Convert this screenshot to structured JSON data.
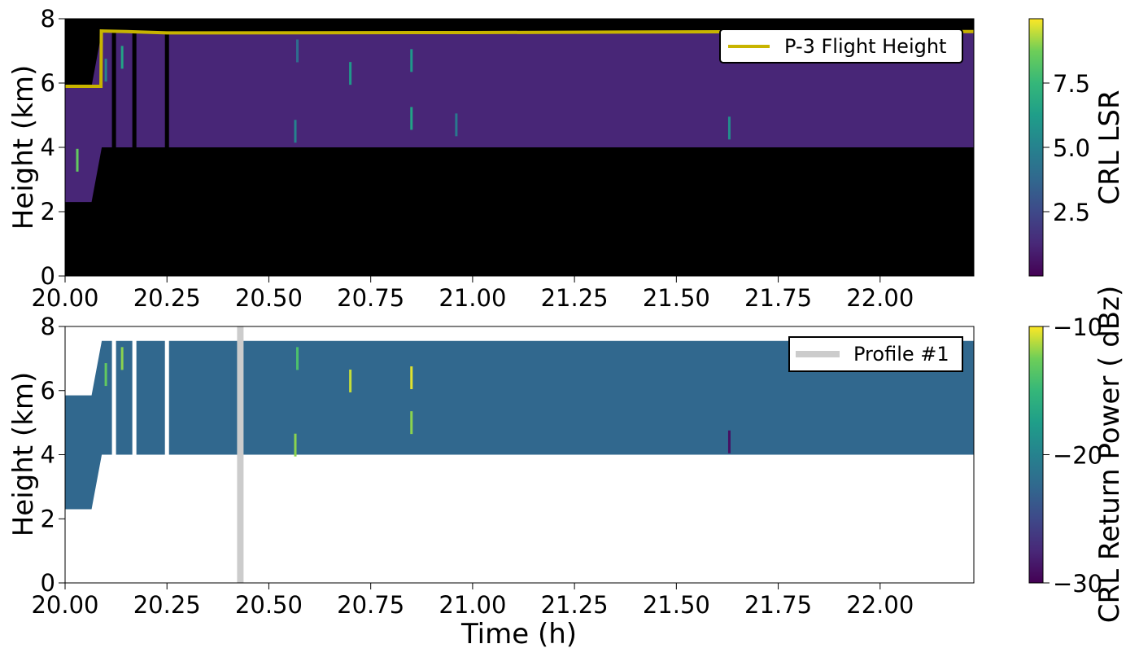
{
  "chart_data": [
    {
      "type": "heatmap",
      "title": "",
      "xlabel": "",
      "ylabel": "Height (km)",
      "xlim": [
        20.0,
        22.23
      ],
      "ylim": [
        0,
        8
      ],
      "x_ticks": [
        "20.00",
        "20.25",
        "20.50",
        "20.75",
        "21.00",
        "21.25",
        "21.50",
        "21.75",
        "22.00"
      ],
      "y_ticks": [
        "0",
        "2",
        "4",
        "6",
        "8"
      ],
      "background_color": "#000000",
      "colormap": "viridis",
      "colorbar": {
        "label": "CRL LSR",
        "ticks": [
          "2.5",
          "5.0",
          "7.5"
        ],
        "tick_values": [
          2.5,
          5.0,
          7.5
        ],
        "range": [
          0.0,
          10.0
        ]
      },
      "field_base_value": 1.2,
      "valid_region": [
        {
          "x": 20.0,
          "bottom": 2.3,
          "top": 5.9
        },
        {
          "x": 20.06,
          "bottom": 2.3,
          "top": 5.9
        },
        {
          "x": 20.065,
          "bottom": 2.3,
          "top": 5.9
        },
        {
          "x": 20.09,
          "bottom": 4.0,
          "top": 7.6
        },
        {
          "x": 22.23,
          "bottom": 4.0,
          "top": 7.6
        }
      ],
      "gaps": [
        [
          20.115,
          20.125
        ],
        [
          20.165,
          20.175
        ],
        [
          20.245,
          20.255
        ]
      ],
      "features": [
        {
          "x": 20.565,
          "y": 4.5,
          "value": 5.0
        },
        {
          "x": 20.57,
          "y": 7.0,
          "value": 4.0
        },
        {
          "x": 20.7,
          "y": 6.3,
          "value": 6.0
        },
        {
          "x": 20.85,
          "y": 4.9,
          "value": 6.5
        },
        {
          "x": 20.85,
          "y": 6.7,
          "value": 6.0
        },
        {
          "x": 20.96,
          "y": 4.7,
          "value": 4.5
        },
        {
          "x": 21.63,
          "y": 4.6,
          "value": 5.5
        },
        {
          "x": 20.03,
          "y": 3.6,
          "value": 8.5
        },
        {
          "x": 20.1,
          "y": 6.4,
          "value": 5.0
        },
        {
          "x": 20.14,
          "y": 6.8,
          "value": 6.5
        }
      ],
      "series": [
        {
          "name": "P-3 Flight Height",
          "color": "#c8b400",
          "x": [
            20.0,
            20.088,
            20.089,
            20.15,
            20.25,
            21.0,
            21.75,
            22.23
          ],
          "y": [
            5.9,
            5.9,
            7.62,
            7.6,
            7.56,
            7.57,
            7.6,
            7.6
          ]
        }
      ],
      "legend": {
        "placement": "top-right",
        "entries": [
          "P-3 Flight Height"
        ]
      }
    },
    {
      "type": "heatmap",
      "title": "",
      "xlabel": "Time (h)",
      "ylabel": "Height (km)",
      "xlim": [
        20.0,
        22.23
      ],
      "ylim": [
        0,
        8
      ],
      "x_ticks": [
        "20.00",
        "20.25",
        "20.50",
        "20.75",
        "21.00",
        "21.25",
        "21.50",
        "21.75",
        "22.00"
      ],
      "y_ticks": [
        "0",
        "2",
        "4",
        "6",
        "8"
      ],
      "background_color": "#ffffff",
      "colormap": "viridis",
      "colorbar": {
        "label": "CRL Return Power ( dBz)",
        "ticks": [
          "−30",
          "−20",
          "−10"
        ],
        "tick_values": [
          -30,
          -20,
          -10
        ],
        "range": [
          -30,
          -10
        ]
      },
      "field_base_value": -22.5,
      "valid_region": [
        {
          "x": 20.0,
          "bottom": 2.3,
          "top": 5.85
        },
        {
          "x": 20.06,
          "bottom": 2.3,
          "top": 5.85
        },
        {
          "x": 20.065,
          "bottom": 2.3,
          "top": 5.85
        },
        {
          "x": 20.09,
          "bottom": 4.0,
          "top": 7.55
        },
        {
          "x": 22.23,
          "bottom": 4.0,
          "top": 7.55
        }
      ],
      "gaps": [
        [
          20.115,
          20.125
        ],
        [
          20.165,
          20.175
        ],
        [
          20.245,
          20.255
        ]
      ],
      "features": [
        {
          "x": 20.565,
          "y": 4.3,
          "value": -12.0
        },
        {
          "x": 20.57,
          "y": 7.0,
          "value": -14.0
        },
        {
          "x": 20.7,
          "y": 6.3,
          "value": -11.0
        },
        {
          "x": 20.85,
          "y": 6.4,
          "value": -10.5
        },
        {
          "x": 20.85,
          "y": 5.0,
          "value": -12.0
        },
        {
          "x": 21.63,
          "y": 4.4,
          "value": -29.0
        },
        {
          "x": 20.1,
          "y": 6.5,
          "value": -13.0
        },
        {
          "x": 20.14,
          "y": 7.0,
          "value": -12.0
        }
      ],
      "series": [
        {
          "name": "Profile #1",
          "color": "#cccccc",
          "x": [
            20.43,
            20.43
          ],
          "y": [
            0,
            8
          ]
        }
      ],
      "legend": {
        "placement": "top-right",
        "entries": [
          "Profile #1"
        ]
      }
    }
  ]
}
